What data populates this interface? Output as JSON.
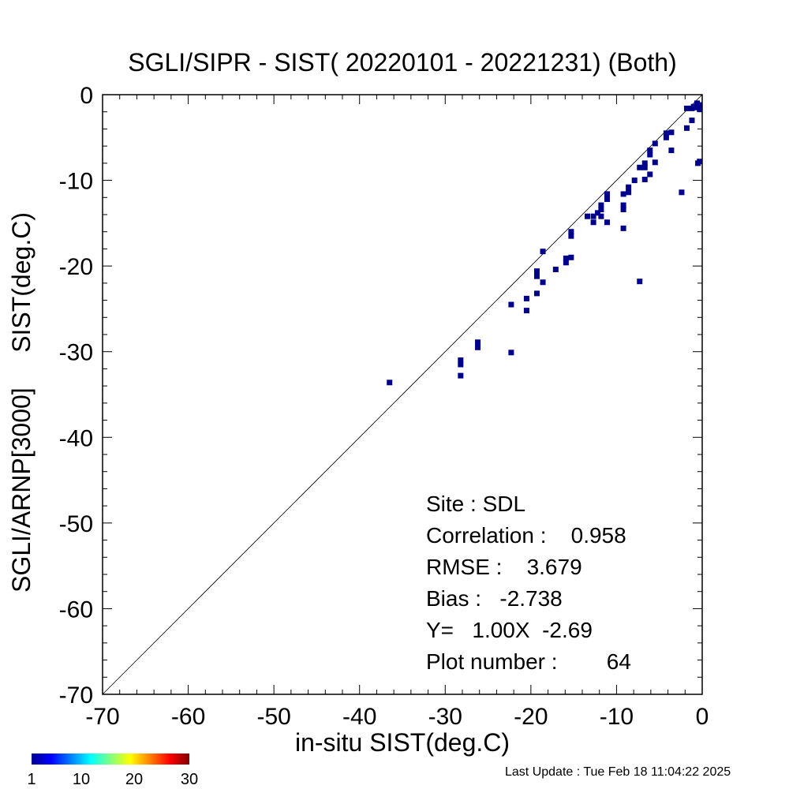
{
  "chart_data": {
    "type": "scatter",
    "title": "SGLI/SIPR - SIST( 20220101 - 20221231) (Both)",
    "xlabel": "in-situ SIST(deg.C)",
    "ylabel": "SGLI/ARNP[3000]     SIST(deg.C)",
    "xlim": [
      -70,
      0
    ],
    "ylim": [
      -70,
      0
    ],
    "xticks": [
      "-70",
      "-60",
      "-50",
      "-40",
      "-30",
      "-20",
      "-10",
      "0"
    ],
    "yticks": [
      "0",
      "-10",
      "-20",
      "-30",
      "-40",
      "-50",
      "-60",
      "-70"
    ],
    "reference_line": "1:1",
    "grid": false,
    "point_color": "#00008B",
    "points": [
      [
        -36.5,
        -33.6
      ],
      [
        -28.2,
        -31.0
      ],
      [
        -28.2,
        -31.5
      ],
      [
        -28.2,
        -32.8
      ],
      [
        -26.2,
        -28.9
      ],
      [
        -26.2,
        -29.5
      ],
      [
        -22.3,
        -24.5
      ],
      [
        -22.3,
        -30.1
      ],
      [
        -20.5,
        -23.8
      ],
      [
        -20.5,
        -25.2
      ],
      [
        -19.3,
        -20.6
      ],
      [
        -19.3,
        -21.2
      ],
      [
        -19.3,
        -23.2
      ],
      [
        -18.6,
        -18.3
      ],
      [
        -18.6,
        -21.9
      ],
      [
        -17.1,
        -20.4
      ],
      [
        -15.9,
        -19.1
      ],
      [
        -15.9,
        -19.6
      ],
      [
        -15.3,
        -19.0
      ],
      [
        -15.3,
        -16.0
      ],
      [
        -15.3,
        -16.5
      ],
      [
        -13.4,
        -14.2
      ],
      [
        -12.7,
        -14.2
      ],
      [
        -12.7,
        -14.9
      ],
      [
        -12.2,
        -13.8
      ],
      [
        -11.8,
        -12.9
      ],
      [
        -11.8,
        -13.4
      ],
      [
        -11.8,
        -14.2
      ],
      [
        -11.1,
        -11.6
      ],
      [
        -11.1,
        -12.2
      ],
      [
        -11.1,
        -14.9
      ],
      [
        -9.2,
        -11.6
      ],
      [
        -9.2,
        -12.9
      ],
      [
        -9.2,
        -13.4
      ],
      [
        -9.2,
        -15.6
      ],
      [
        -8.6,
        -10.8
      ],
      [
        -8.6,
        -11.4
      ],
      [
        -7.9,
        -10.0
      ],
      [
        -7.3,
        -8.5
      ],
      [
        -7.3,
        -21.8
      ],
      [
        -6.7,
        -8.0
      ],
      [
        -6.7,
        -8.5
      ],
      [
        -6.7,
        -9.9
      ],
      [
        -6.1,
        -6.5
      ],
      [
        -6.1,
        -7.0
      ],
      [
        -6.1,
        -9.3
      ],
      [
        -5.5,
        -5.7
      ],
      [
        -5.5,
        -7.9
      ],
      [
        -4.2,
        -4.5
      ],
      [
        -4.2,
        -5.0
      ],
      [
        -3.6,
        -4.4
      ],
      [
        -3.6,
        -6.5
      ],
      [
        -2.4,
        -11.4
      ],
      [
        -1.8,
        -1.6
      ],
      [
        -1.8,
        -3.9
      ],
      [
        -1.2,
        -1.6
      ],
      [
        -1.2,
        -3.0
      ],
      [
        -0.6,
        -1.5
      ],
      [
        -0.3,
        -1.2
      ],
      [
        -0.3,
        -1.7
      ],
      [
        -0.3,
        -7.8
      ],
      [
        -0.5,
        -8.0
      ],
      [
        -0.6,
        -1.0
      ],
      [
        -1.0,
        -1.4
      ]
    ],
    "colorbar": {
      "ticks": [
        "1",
        "10",
        "20",
        "30"
      ],
      "colors": [
        "#00008F",
        "#0000FF",
        "#0080FF",
        "#00FFFF",
        "#80FF80",
        "#FFFF00",
        "#FF8000",
        "#FF0000",
        "#800000"
      ]
    }
  },
  "stats": {
    "site": "Site : SDL",
    "correlation": "Correlation :    0.958",
    "rmse": "RMSE :    3.679",
    "bias": "Bias :   -2.738",
    "fit": "Y=   1.00X  -2.69",
    "plot_number": "Plot number :        64"
  },
  "footer": {
    "last_update": "Last Update : Tue Feb 18 11:04:22 2025"
  }
}
